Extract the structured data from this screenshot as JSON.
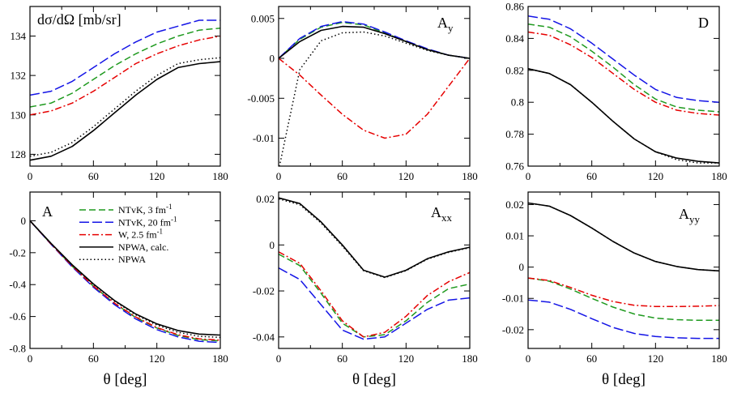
{
  "figure": {
    "x_axis_label": "θ  [deg]"
  },
  "styles": {
    "NTvK3": {
      "color": "#1f9a1f",
      "dash": "8,4"
    },
    "NTvK20": {
      "color": "#1414e6",
      "dash": "12,4"
    },
    "W": {
      "color": "#e60000",
      "dash": "8,3,2,3"
    },
    "calc": {
      "color": "#000000",
      "dash": ""
    },
    "NPWA": {
      "color": "#000000",
      "dash": "1.5,3"
    }
  },
  "legend": [
    {
      "key": "NTvK3",
      "label": "NTvK, 3 fm",
      "sup": "-1"
    },
    {
      "key": "NTvK20",
      "label": "NTvK, 20 fm",
      "sup": "-1"
    },
    {
      "key": "W",
      "label": "W, 2.5 fm",
      "sup": "-1"
    },
    {
      "key": "calc",
      "label": "NPWA, calc.",
      "sup": ""
    },
    {
      "key": "NPWA",
      "label": "NPWA",
      "sup": ""
    }
  ],
  "chart_data": [
    {
      "type": "line",
      "title": "dσ/dΩ  [mb/sr]",
      "xlabel": "θ  [deg]",
      "xlim": [
        0,
        180
      ],
      "ylim": [
        127.4,
        135.5
      ],
      "xticks": [
        0,
        60,
        120,
        180
      ],
      "yticks": [
        128,
        130,
        132,
        134
      ],
      "ytick_labels": [
        "128",
        "130",
        "132",
        "134"
      ],
      "x": [
        0,
        20,
        40,
        60,
        80,
        100,
        120,
        140,
        160,
        180
      ],
      "series": [
        {
          "name": "NTvK, 3 fm-1",
          "key": "NTvK3",
          "values": [
            130.4,
            130.6,
            131.1,
            131.8,
            132.5,
            133.1,
            133.6,
            134.0,
            134.3,
            134.4
          ]
        },
        {
          "name": "NTvK, 20 fm-1",
          "key": "NTvK20",
          "values": [
            131.0,
            131.2,
            131.7,
            132.4,
            133.1,
            133.7,
            134.2,
            134.5,
            134.8,
            134.8
          ]
        },
        {
          "name": "W, 2.5 fm-1",
          "key": "W",
          "values": [
            130.0,
            130.2,
            130.6,
            131.2,
            131.9,
            132.6,
            133.1,
            133.5,
            133.8,
            134.0
          ]
        },
        {
          "name": "NPWA, calc.",
          "key": "calc",
          "values": [
            127.7,
            127.9,
            128.4,
            129.2,
            130.1,
            131.0,
            131.8,
            132.4,
            132.6,
            132.7
          ]
        },
        {
          "name": "NPWA",
          "key": "NPWA",
          "values": [
            127.9,
            128.1,
            128.6,
            129.4,
            130.3,
            131.2,
            132.0,
            132.6,
            132.8,
            132.9
          ]
        }
      ]
    },
    {
      "type": "line",
      "title": "A",
      "title_sub": "y",
      "xlabel": "θ  [deg]",
      "xlim": [
        0,
        180
      ],
      "ylim": [
        -0.0135,
        0.0065
      ],
      "xticks": [
        0,
        60,
        120,
        180
      ],
      "yticks": [
        -0.01,
        -0.005,
        0,
        0.005
      ],
      "ytick_labels": [
        "-0.01",
        "-0.005",
        "0",
        "0.005"
      ],
      "x": [
        0,
        20,
        40,
        60,
        80,
        100,
        120,
        140,
        160,
        180
      ],
      "series": [
        {
          "name": "NTvK, 3 fm-1",
          "key": "NTvK3",
          "values": [
            0,
            0.0024,
            0.0039,
            0.0045,
            0.0042,
            0.0032,
            0.0021,
            0.0011,
            0.0004,
            0
          ]
        },
        {
          "name": "NTvK, 20 fm-1",
          "key": "NTvK20",
          "values": [
            0,
            0.0025,
            0.004,
            0.0046,
            0.0043,
            0.0033,
            0.0022,
            0.0012,
            0.0004,
            0
          ]
        },
        {
          "name": "W, 2.5 fm-1",
          "key": "W",
          "values": [
            0,
            -0.0021,
            -0.0046,
            -0.007,
            -0.009,
            -0.01,
            -0.0095,
            -0.007,
            -0.0035,
            0
          ]
        },
        {
          "name": "NPWA, calc.",
          "key": "calc",
          "values": [
            0,
            0.0021,
            0.0035,
            0.004,
            0.0039,
            0.0031,
            0.0021,
            0.0011,
            0.0004,
            0
          ]
        },
        {
          "name": "NPWA",
          "key": "NPWA",
          "values": [
            -0.014,
            -0.0014,
            0.0022,
            0.0032,
            0.0033,
            0.0028,
            0.0019,
            0.001,
            0.0004,
            0
          ]
        }
      ]
    },
    {
      "type": "line",
      "title": "D",
      "xlabel": "θ  [deg]",
      "xlim": [
        0,
        180
      ],
      "ylim": [
        0.76,
        0.86
      ],
      "xticks": [
        0,
        60,
        120,
        180
      ],
      "yticks": [
        0.76,
        0.78,
        0.8,
        0.82,
        0.84,
        0.86
      ],
      "ytick_labels": [
        "0.76",
        "0.78",
        "0.8",
        "0.82",
        "0.84",
        "0.86"
      ],
      "x": [
        0,
        20,
        40,
        60,
        80,
        100,
        120,
        140,
        160,
        180
      ],
      "series": [
        {
          "name": "NTvK, 3 fm-1",
          "key": "NTvK3",
          "values": [
            0.849,
            0.847,
            0.841,
            0.832,
            0.822,
            0.811,
            0.802,
            0.797,
            0.795,
            0.794
          ]
        },
        {
          "name": "NTvK, 20 fm-1",
          "key": "NTvK20",
          "values": [
            0.854,
            0.852,
            0.846,
            0.837,
            0.827,
            0.817,
            0.808,
            0.803,
            0.801,
            0.8
          ]
        },
        {
          "name": "W, 2.5 fm-1",
          "key": "W",
          "values": [
            0.844,
            0.842,
            0.836,
            0.828,
            0.818,
            0.808,
            0.8,
            0.795,
            0.793,
            0.792
          ]
        },
        {
          "name": "NPWA, calc.",
          "key": "calc",
          "values": [
            0.821,
            0.818,
            0.811,
            0.8,
            0.788,
            0.777,
            0.769,
            0.765,
            0.763,
            0.762
          ]
        },
        {
          "name": "NPWA",
          "key": "NPWA",
          "values": [
            0.821,
            0.818,
            0.811,
            0.8,
            0.788,
            0.777,
            0.769,
            0.764,
            0.762,
            0.762
          ]
        }
      ]
    },
    {
      "type": "line",
      "title": "A",
      "xlabel": "θ  [deg]",
      "xlim": [
        0,
        180
      ],
      "ylim": [
        -0.8,
        0.18
      ],
      "xticks": [
        0,
        60,
        120,
        180
      ],
      "yticks": [
        -0.8,
        -0.6,
        -0.4,
        -0.2,
        0
      ],
      "ytick_labels": [
        "-0.8",
        "-0.6",
        "-0.4",
        "-0.2",
        "0"
      ],
      "legend_position": "top-right",
      "x": [
        0,
        20,
        40,
        60,
        80,
        100,
        120,
        140,
        160,
        180
      ],
      "series": [
        {
          "name": "NTvK, 3 fm-1",
          "key": "NTvK3",
          "values": [
            0,
            -0.146,
            -0.285,
            -0.41,
            -0.518,
            -0.606,
            -0.672,
            -0.718,
            -0.745,
            -0.753
          ]
        },
        {
          "name": "NTvK, 20 fm-1",
          "key": "NTvK20",
          "values": [
            0,
            -0.148,
            -0.289,
            -0.416,
            -0.526,
            -0.615,
            -0.682,
            -0.728,
            -0.755,
            -0.763
          ]
        },
        {
          "name": "W, 2.5 fm-1",
          "key": "W",
          "values": [
            0,
            -0.146,
            -0.284,
            -0.409,
            -0.516,
            -0.603,
            -0.669,
            -0.714,
            -0.74,
            -0.748
          ]
        },
        {
          "name": "NPWA, calc.",
          "key": "calc",
          "values": [
            0,
            -0.142,
            -0.276,
            -0.396,
            -0.5,
            -0.584,
            -0.646,
            -0.688,
            -0.71,
            -0.716
          ]
        },
        {
          "name": "NPWA",
          "key": "NPWA",
          "values": [
            0,
            -0.143,
            -0.278,
            -0.399,
            -0.504,
            -0.59,
            -0.654,
            -0.699,
            -0.724,
            -0.731
          ]
        }
      ]
    },
    {
      "type": "line",
      "title": "A",
      "title_sub": "xx",
      "xlabel": "θ  [deg]",
      "xlim": [
        0,
        180
      ],
      "ylim": [
        -0.045,
        0.023
      ],
      "xticks": [
        0,
        60,
        120,
        180
      ],
      "yticks": [
        -0.04,
        -0.02,
        0,
        0.02
      ],
      "ytick_labels": [
        "-0.04",
        "-0.02",
        "0",
        "0.02"
      ],
      "x": [
        0,
        20,
        40,
        60,
        80,
        100,
        120,
        140,
        160,
        180
      ],
      "series": [
        {
          "name": "NTvK, 3 fm-1",
          "key": "NTvK3",
          "values": [
            -0.004,
            -0.009,
            -0.021,
            -0.034,
            -0.04,
            -0.039,
            -0.033,
            -0.025,
            -0.019,
            -0.017
          ]
        },
        {
          "name": "NTvK, 20 fm-1",
          "key": "NTvK20",
          "values": [
            -0.01,
            -0.015,
            -0.026,
            -0.037,
            -0.041,
            -0.04,
            -0.034,
            -0.028,
            -0.024,
            -0.023
          ]
        },
        {
          "name": "W, 2.5 fm-1",
          "key": "W",
          "values": [
            -0.003,
            -0.008,
            -0.02,
            -0.033,
            -0.04,
            -0.038,
            -0.031,
            -0.022,
            -0.016,
            -0.012
          ]
        },
        {
          "name": "NPWA, calc.",
          "key": "calc",
          "values": [
            0.0205,
            0.018,
            0.01,
            0.0,
            -0.011,
            -0.014,
            -0.011,
            -0.006,
            -0.003,
            -0.001
          ]
        },
        {
          "name": "NPWA",
          "key": "NPWA",
          "values": [
            0.02,
            0.0175,
            0.0095,
            -0.0005,
            -0.0112,
            -0.0142,
            -0.0112,
            -0.0062,
            -0.0032,
            -0.0012
          ]
        }
      ]
    },
    {
      "type": "line",
      "title": "A",
      "title_sub": "yy",
      "xlabel": "θ  [deg]",
      "xlim": [
        0,
        180
      ],
      "ylim": [
        -0.026,
        0.024
      ],
      "xticks": [
        0,
        60,
        120,
        180
      ],
      "yticks": [
        -0.02,
        -0.01,
        0,
        0.01,
        0.02
      ],
      "ytick_labels": [
        "-0.02",
        "-0.01",
        "0",
        "0.01",
        "0.02"
      ],
      "x": [
        0,
        20,
        40,
        60,
        80,
        100,
        120,
        140,
        160,
        180
      ],
      "series": [
        {
          "name": "NTvK, 3 fm-1",
          "key": "NTvK3",
          "values": [
            -0.0035,
            -0.0045,
            -0.007,
            -0.01,
            -0.0128,
            -0.015,
            -0.0163,
            -0.0168,
            -0.017,
            -0.017
          ]
        },
        {
          "name": "NTvK, 20 fm-1",
          "key": "NTvK20",
          "values": [
            -0.0105,
            -0.0112,
            -0.0135,
            -0.0165,
            -0.0193,
            -0.0212,
            -0.0222,
            -0.0226,
            -0.0228,
            -0.0228
          ]
        },
        {
          "name": "W, 2.5 fm-1",
          "key": "W",
          "values": [
            -0.0035,
            -0.0043,
            -0.0065,
            -0.009,
            -0.011,
            -0.0122,
            -0.0126,
            -0.0126,
            -0.0125,
            -0.0123
          ]
        },
        {
          "name": "NPWA, calc.",
          "key": "calc",
          "values": [
            0.0205,
            0.0195,
            0.0165,
            0.0125,
            0.0082,
            0.0045,
            0.0018,
            0.0002,
            -0.0008,
            -0.0012
          ]
        },
        {
          "name": "NPWA",
          "key": "NPWA",
          "values": [
            0.0205,
            0.0195,
            0.0165,
            0.0125,
            0.0082,
            0.0045,
            0.0018,
            0.0002,
            -0.0008,
            -0.0012
          ]
        }
      ]
    }
  ]
}
